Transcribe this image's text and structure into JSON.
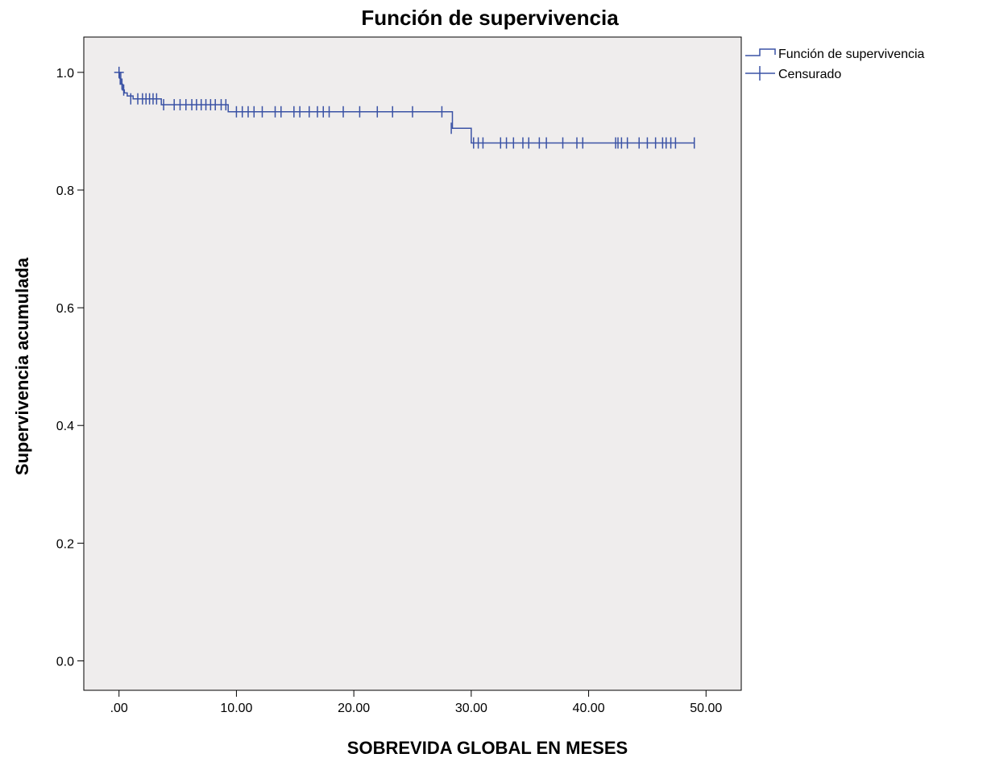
{
  "chart_data": {
    "type": "line",
    "title": "Función de supervivencia",
    "xlabel": "SOBREVIDA GLOBAL EN MESES",
    "ylabel": "Supervivencia acumulada",
    "xlim": [
      -3,
      53
    ],
    "ylim": [
      -0.05,
      1.06
    ],
    "x_ticks": [
      0,
      10,
      20,
      30,
      40,
      50
    ],
    "x_tick_labels": [
      ".00",
      "10.00",
      "20.00",
      "30.00",
      "40.00",
      "50.00"
    ],
    "y_ticks": [
      0.0,
      0.2,
      0.4,
      0.6,
      0.8,
      1.0
    ],
    "y_tick_labels": [
      "0.0",
      "0.2",
      "0.4",
      "0.6",
      "0.8",
      "1.0"
    ],
    "grid": false,
    "legend_position": "top-right outside plot",
    "colors": {
      "series": "#3a52a5",
      "plot_background": "#efeded",
      "axis": "#000000"
    },
    "series": [
      {
        "name": "Función de supervivencia",
        "kind": "step",
        "x": [
          0,
          0.05,
          0.1,
          0.3,
          0.45,
          0.7,
          1.2,
          3.6,
          9.3,
          28.4,
          30.0,
          49.0
        ],
        "y": [
          1.0,
          0.99,
          0.98,
          0.97,
          0.965,
          0.96,
          0.955,
          0.945,
          0.933,
          0.905,
          0.88,
          0.88
        ]
      },
      {
        "name": "Censurado",
        "kind": "censor_marks",
        "x": [
          0.0,
          0.15,
          0.25,
          0.4,
          1.0,
          1.6,
          2.0,
          2.3,
          2.6,
          2.9,
          3.2,
          3.8,
          4.7,
          5.2,
          5.7,
          6.2,
          6.6,
          7.0,
          7.4,
          7.8,
          8.2,
          8.7,
          9.1,
          10.0,
          10.5,
          11.0,
          11.5,
          12.2,
          13.3,
          13.8,
          14.9,
          15.4,
          16.2,
          16.9,
          17.4,
          17.9,
          19.1,
          20.5,
          22.0,
          23.3,
          25.0,
          27.5,
          28.3,
          30.2,
          30.6,
          31.0,
          32.5,
          33.0,
          33.6,
          34.4,
          34.9,
          35.8,
          36.4,
          37.8,
          39.0,
          39.5,
          42.3,
          42.5,
          42.8,
          43.3,
          44.3,
          45.0,
          45.7,
          46.3,
          46.6,
          47.0,
          47.4,
          49.0
        ],
        "y": [
          1.0,
          0.99,
          0.98,
          0.97,
          0.955,
          0.955,
          0.955,
          0.955,
          0.955,
          0.955,
          0.955,
          0.945,
          0.945,
          0.945,
          0.945,
          0.945,
          0.945,
          0.945,
          0.945,
          0.945,
          0.945,
          0.945,
          0.945,
          0.933,
          0.933,
          0.933,
          0.933,
          0.933,
          0.933,
          0.933,
          0.933,
          0.933,
          0.933,
          0.933,
          0.933,
          0.933,
          0.933,
          0.933,
          0.933,
          0.933,
          0.933,
          0.933,
          0.905,
          0.88,
          0.88,
          0.88,
          0.88,
          0.88,
          0.88,
          0.88,
          0.88,
          0.88,
          0.88,
          0.88,
          0.88,
          0.88,
          0.88,
          0.88,
          0.88,
          0.88,
          0.88,
          0.88,
          0.88,
          0.88,
          0.88,
          0.88,
          0.88,
          0.88
        ]
      }
    ]
  }
}
